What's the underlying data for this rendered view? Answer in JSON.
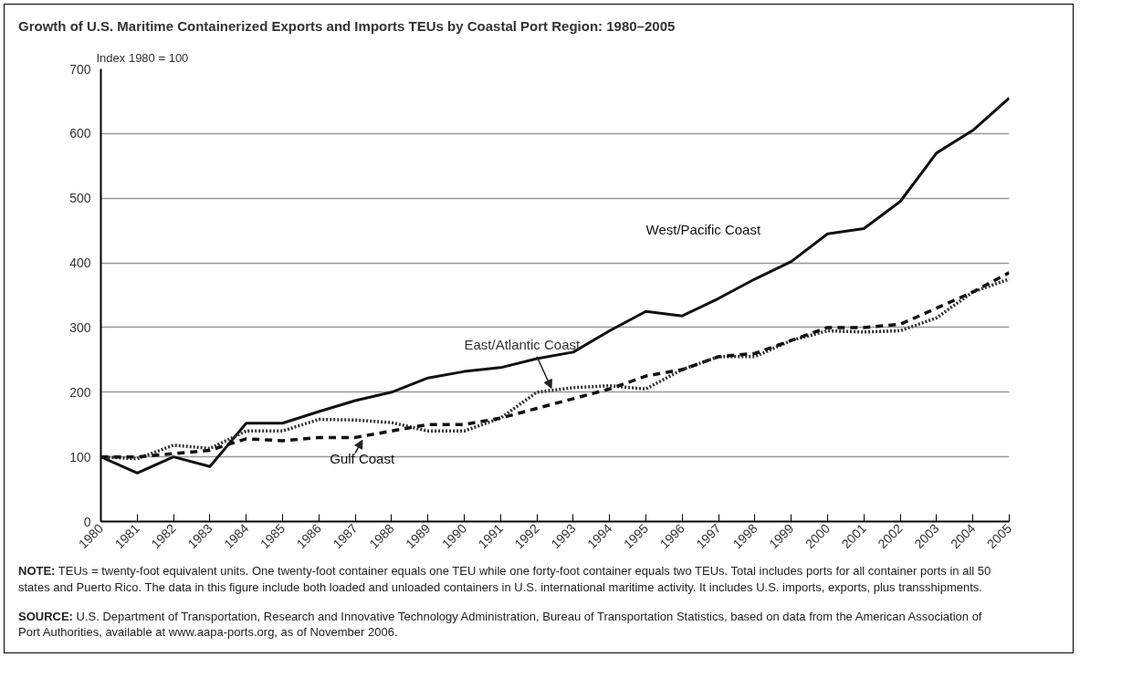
{
  "chart_data": {
    "type": "line",
    "title": "Growth of U.S. Maritime Containerized Exports and Imports TEUs by Coastal Port Region: 1980–2005",
    "ylabel": "Index 1980 = 100",
    "x": [
      1980,
      1981,
      1982,
      1983,
      1984,
      1985,
      1986,
      1987,
      1988,
      1989,
      1990,
      1991,
      1992,
      1993,
      1994,
      1995,
      1996,
      1997,
      1998,
      1999,
      2000,
      2001,
      2002,
      2003,
      2004,
      2005
    ],
    "series": [
      {
        "name": "West/Pacific Coast",
        "color": "#111111",
        "line_style": "solid",
        "values": [
          100,
          75,
          100,
          85,
          152,
          152,
          170,
          187,
          200,
          222,
          232,
          238,
          252,
          262,
          295,
          325,
          318,
          345,
          375,
          402,
          445,
          453,
          495,
          570,
          605,
          655
        ]
      },
      {
        "name": "East/Atlantic Coast",
        "color": "#333333",
        "line_style": "dotted",
        "values": [
          100,
          97,
          118,
          113,
          140,
          140,
          158,
          157,
          153,
          140,
          140,
          160,
          200,
          207,
          210,
          205,
          235,
          255,
          255,
          280,
          295,
          293,
          295,
          315,
          355,
          375
        ]
      },
      {
        "name": "Gulf Coast",
        "color": "#111111",
        "line_style": "dashed",
        "values": [
          100,
          100,
          105,
          110,
          128,
          125,
          130,
          130,
          140,
          150,
          150,
          160,
          175,
          190,
          205,
          225,
          235,
          255,
          260,
          280,
          300,
          300,
          305,
          330,
          355,
          385
        ]
      }
    ],
    "xlim": [
      1980,
      2005
    ],
    "xticks": [
      1980,
      1981,
      1982,
      1983,
      1984,
      1985,
      1986,
      1987,
      1988,
      1989,
      1990,
      1991,
      1992,
      1993,
      1994,
      1995,
      1996,
      1997,
      1998,
      1999,
      2000,
      2001,
      2002,
      2003,
      2004,
      2005
    ],
    "ylim": [
      0,
      700
    ],
    "yticks": [
      0,
      100,
      200,
      300,
      400,
      500,
      600,
      700
    ],
    "grid": "y",
    "legend": false,
    "annotations": [
      "NOTE: TEUs = twenty-foot equivalent units. One twenty-foot container equals one TEU while one forty-foot container equals two TEUs. Total includes ports for all container ports in all 50 states and Puerto Rico. The data in this figure include both loaded and unloaded containers in U.S. international maritime activity. It includes U.S. imports, exports, plus transshipments.",
      "SOURCE: U.S. Department of Transportation, Research and Innovative Technology Administration, Bureau of Transportation Statistics, based on data from the American Association of Port Authorities, available at www.aapa-ports.org, as of November 2006."
    ]
  }
}
